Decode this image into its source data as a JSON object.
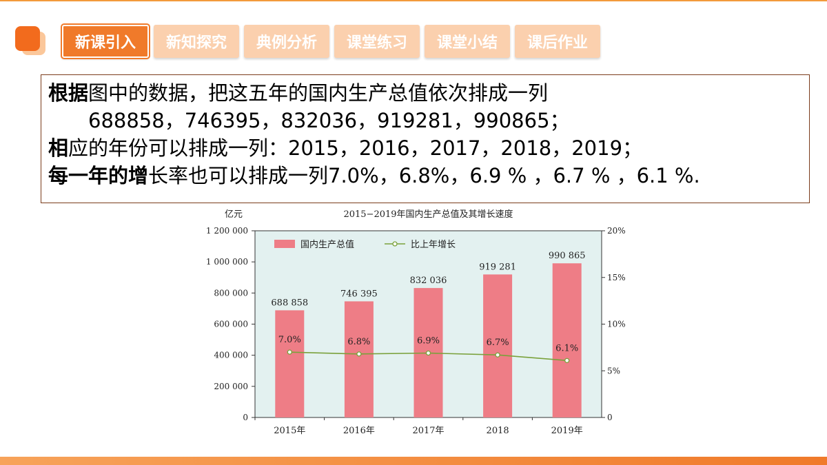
{
  "tabs": [
    {
      "label": "新课引入",
      "active": true
    },
    {
      "label": "新知探究",
      "active": false
    },
    {
      "label": "典例分析",
      "active": false
    },
    {
      "label": "课堂练习",
      "active": false
    },
    {
      "label": "课堂小结",
      "active": false
    },
    {
      "label": "课后作业",
      "active": false
    }
  ],
  "text": {
    "line1_bold": "根据",
    "line1_rest": "图中的数据，把这五年的国内生产总值依次排成一列",
    "line2": "688858，746395，832036，919281，990865；",
    "line3_bold": "相",
    "line3_rest": "应的年份可以排成一列：2015，2016，2017，2018，2019；",
    "line4_bold": "每一年的增",
    "line4_rest": "长率也可以排成一列7.0%，6.8%，6.9 % ，6.7 % ，6.1 %."
  },
  "colors": {
    "accent": "#f07a2a",
    "bar": "#ee7d86",
    "line": "#7aa13b",
    "plot_bg": "#e3f1f0"
  },
  "chart_data": {
    "type": "bar",
    "title": "2015−2019年国内生产总值及其增长速度",
    "ylabel": "亿元",
    "categories": [
      "2015年",
      "2016年",
      "2017年",
      "2018",
      "2019年"
    ],
    "ylim": [
      0,
      1200000
    ],
    "y_ticks": [
      "0",
      "200 000",
      "400 000",
      "600 000",
      "800 000",
      "1 000 000",
      "1 200 000"
    ],
    "y2lim": [
      0,
      20
    ],
    "y2_ticks": [
      "0",
      "5%",
      "10%",
      "15%",
      "20%"
    ],
    "legend_position": "top-left",
    "series": [
      {
        "name": "国内生产总值",
        "type": "bar",
        "values": [
          688858,
          746395,
          832036,
          919281,
          990865
        ],
        "labels": [
          "688 858",
          "746 395",
          "832 036",
          "919 281",
          "990 865"
        ]
      },
      {
        "name": "比上年增长",
        "type": "line",
        "axis": "right",
        "values": [
          7.0,
          6.8,
          6.9,
          6.7,
          6.1
        ],
        "labels": [
          "7.0%",
          "6.8%",
          "6.9%",
          "6.7%",
          "6.1%"
        ]
      }
    ]
  }
}
